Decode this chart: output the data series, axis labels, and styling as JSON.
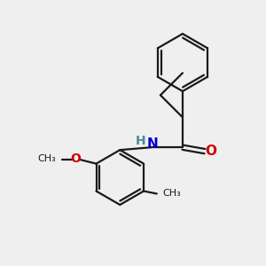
{
  "background_color": "#efefef",
  "bond_color": "#1a1a1a",
  "N_color": "#0000cc",
  "O_color": "#cc0000",
  "H_color": "#4a9090",
  "text_color": "#1a1a1a",
  "figsize": [
    3.0,
    3.0
  ],
  "dpi": 100,
  "xlim": [
    0,
    10
  ],
  "ylim": [
    0,
    10
  ]
}
